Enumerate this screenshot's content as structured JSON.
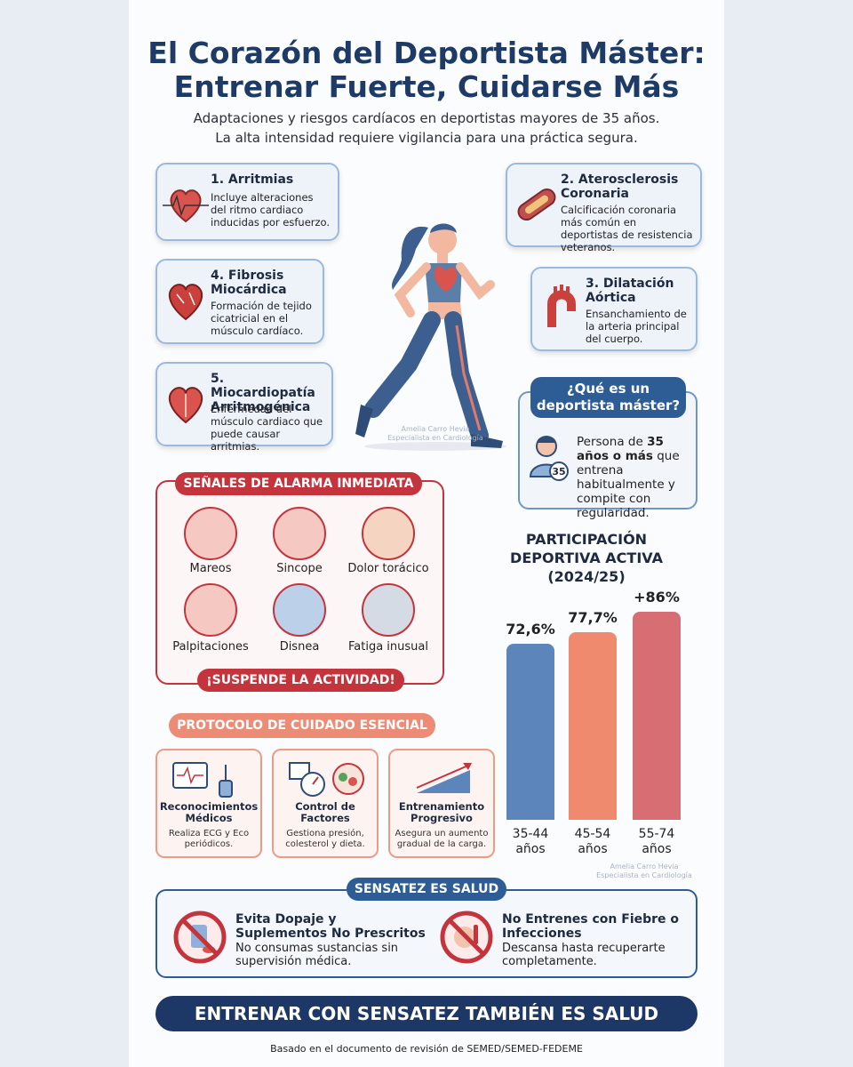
{
  "header": {
    "title_line1": "El Corazón del Deportista Máster:",
    "title_line2": "Entrenar Fuerte, Cuidarse Más",
    "subtitle_line1": "Adaptaciones y riesgos cardíacos en deportistas mayores de 35 años.",
    "subtitle_line2": "La alta intensidad requiere vigilancia para una práctica segura."
  },
  "risks": [
    {
      "title": "1. Arritmias",
      "text": "Incluye alteraciones del ritmo cardiaco inducidas por esfuerzo."
    },
    {
      "title": "2. Aterosclerosis Coronaria",
      "text": "Calcificación coronaria más común en deportistas de resistencia veteranos."
    },
    {
      "title": "4. Fibrosis Miocárdica",
      "text": "Formación de tejido cicatricial en el músculo cardíaco."
    },
    {
      "title": "3. Dilatación Aórtica",
      "text": "Ensanchamiento de la arteria principal del cuerpo."
    },
    {
      "title": "5. Miocardiopatía Arritmogénica",
      "text": "Enfermedad del músculo cardiaco que puede causar arritmias."
    }
  ],
  "watermark": {
    "line1": "Amelia Carro Hevia",
    "line2": "Especialista en Cardiología"
  },
  "master": {
    "title": "¿Qué es un deportista máster?",
    "text_before": "Persona de",
    "text_bold": "35 años o más",
    "text_after": "que entrena habitualmente y compite con regularidad.",
    "badge": "35"
  },
  "alarms": {
    "title": "SEÑALES DE ALARMA INMEDIATA",
    "items": [
      "Mareos",
      "Sincope",
      "Dolor torácico",
      "Palpitaciones",
      "Disnea",
      "Fatiga inusual"
    ],
    "footer": "¡SUSPENDE LA ACTIVIDAD!"
  },
  "protocol": {
    "title": "PROTOCOLO DE CUIDADO ESENCIAL",
    "items": [
      {
        "title": "Reconocimientos Médicos",
        "text": "Realiza ECG y Eco periódicos."
      },
      {
        "title": "Control de Factores",
        "text": "Gestiona presión, colesterol y dieta."
      },
      {
        "title": "Entrenamiento Progresivo",
        "text": "Asegura un aumento gradual de la carga."
      }
    ]
  },
  "chart_data": {
    "type": "bar",
    "title": "PARTICIPACIÓN DEPORTIVA ACTIVA (2024/25)",
    "categories": [
      "35-44 años",
      "45-54 años",
      "55-74 años"
    ],
    "values": [
      72.6,
      77.7,
      86
    ],
    "value_labels": [
      "72,6%",
      "77,7%",
      "+86%"
    ],
    "colors": [
      "#5b85bb",
      "#ef8a6f",
      "#d66e74"
    ]
  },
  "sensatez": {
    "title": "SENSATEZ ES SALUD",
    "items": [
      {
        "title": "Evita Dopaje y Suplementos No Prescritos",
        "text": "No consumas sustancias sin supervisión médica."
      },
      {
        "title": "No Entrenes con Fiebre o Infecciones",
        "text": "Descansa hasta recuperarte completamente."
      }
    ]
  },
  "banner": "ENTRENAR CON SENSATEZ TAMBIÉN ES SALUD",
  "source": "Basado en el documento de revisión de SEMED/SEMED-FEDEME"
}
